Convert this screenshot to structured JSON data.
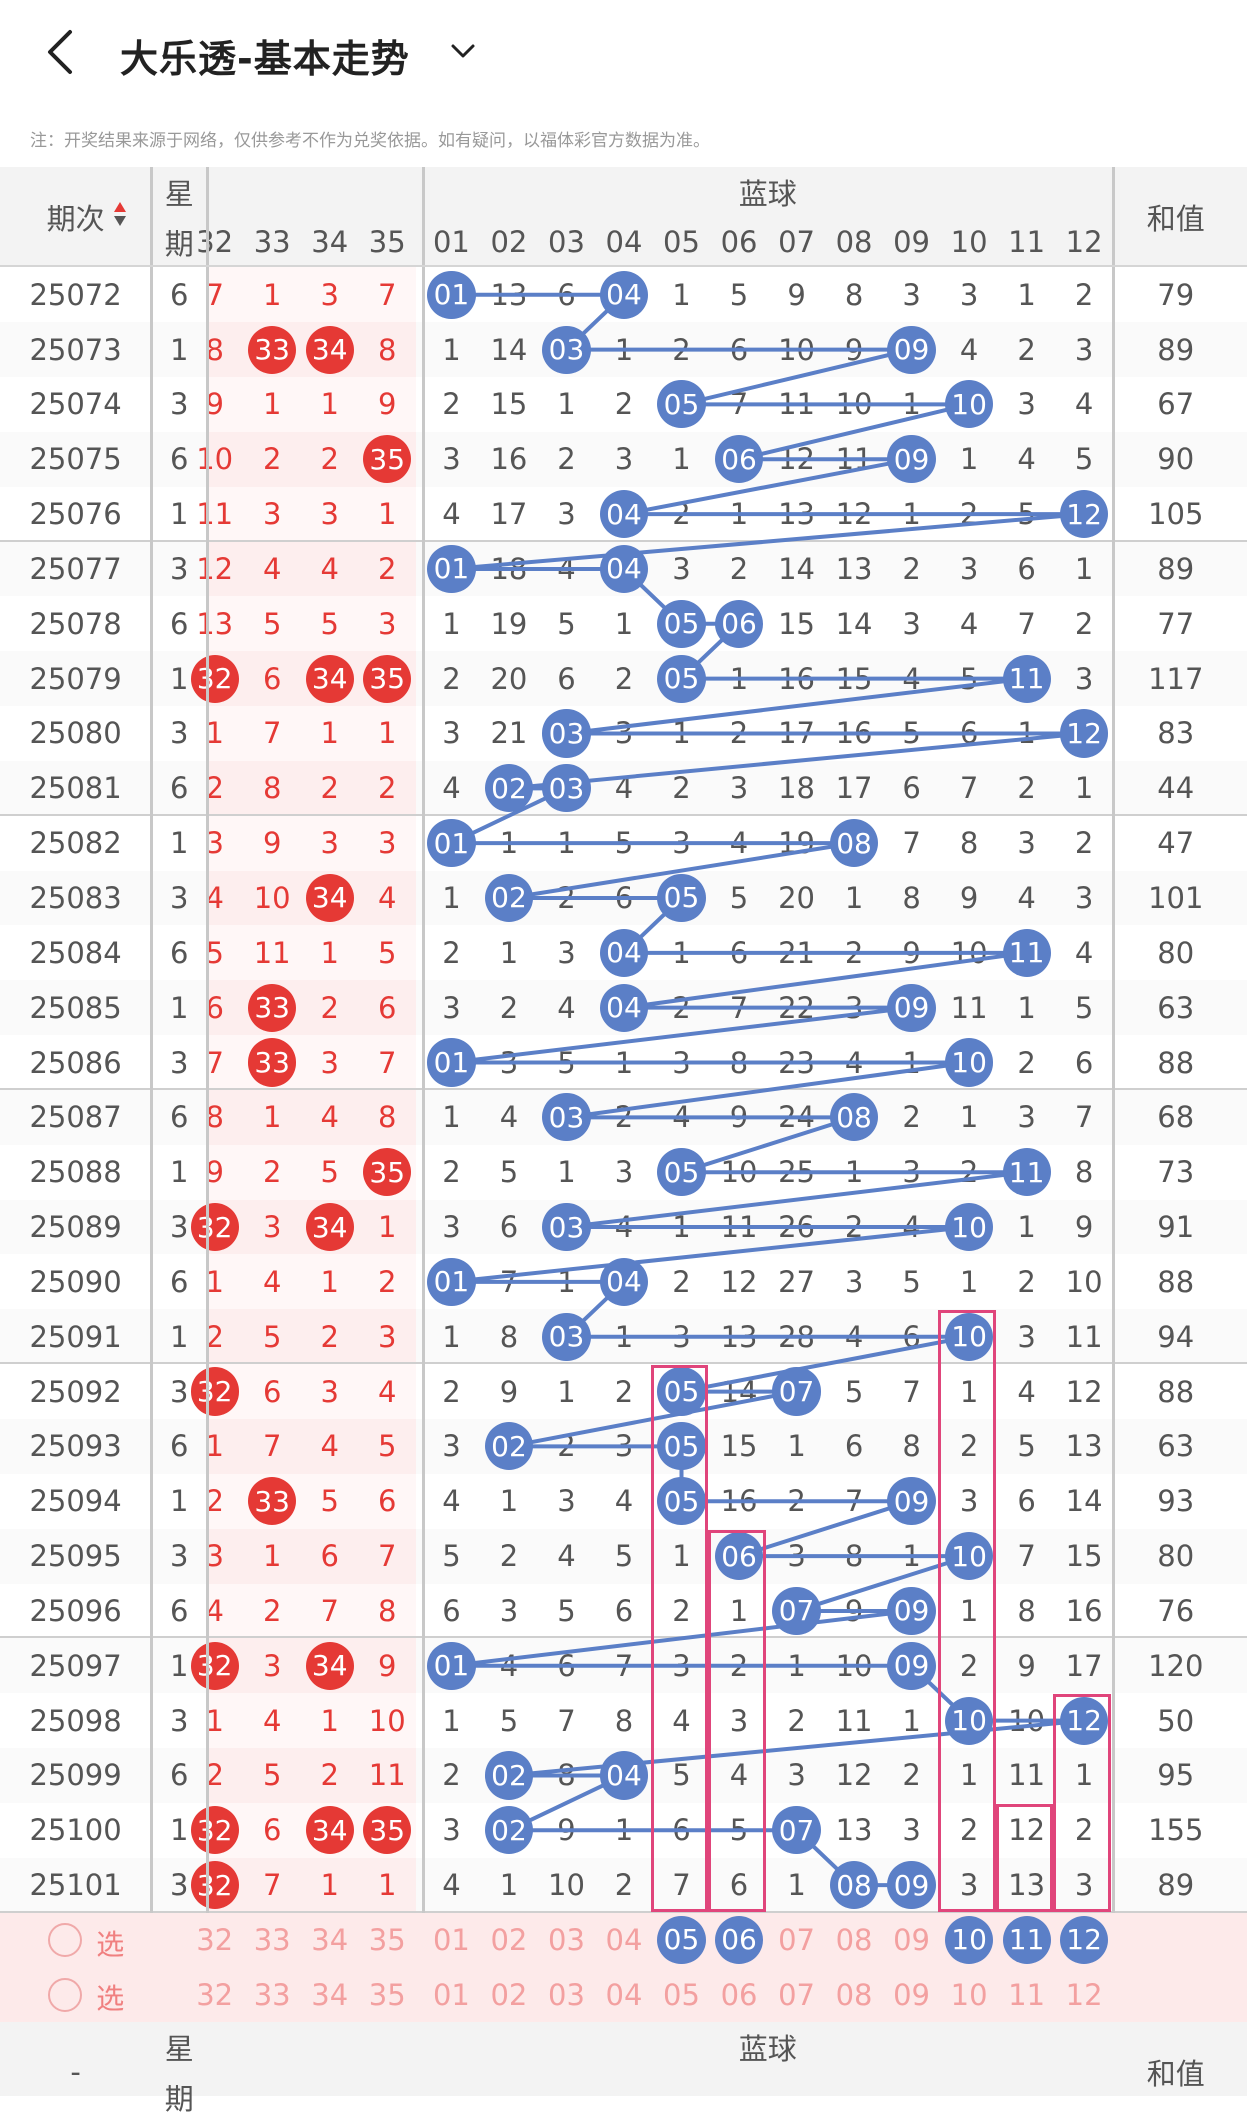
{
  "header": {
    "title": "大乐透-基本走势",
    "back_icon": "chevron-left-icon",
    "dropdown_icon": "chevron-down-icon"
  },
  "note": "注：开奖结果来源于网络，仅供参考不作为兑奖依据。如有疑问，以福体彩官方数据为准。",
  "columns": {
    "period": "期次",
    "weekday_top": "星",
    "weekday_bottom": "期",
    "blue_group": "蓝球",
    "sum": "和值",
    "red_tail": [
      "32",
      "33",
      "34",
      "35"
    ],
    "blue": [
      "01",
      "02",
      "03",
      "04",
      "05",
      "06",
      "07",
      "08",
      "09",
      "10",
      "11",
      "12"
    ],
    "sort_icon": "sort-arrows-icon"
  },
  "colors": {
    "red": "#e53935",
    "blue_ball": "#5b7fc7",
    "highlight_box": "#e0457b",
    "pick_row_bg": "#fdeaea",
    "red_zone_bg": "#fdecec"
  },
  "rows": [
    {
      "p": "25072",
      "w": "6",
      "r": [
        "7",
        "1",
        "3",
        "7"
      ],
      "rb": [],
      "b": [
        "01",
        "13",
        "6",
        "04",
        "1",
        "5",
        "9",
        "8",
        "3",
        "3",
        "1",
        "2"
      ],
      "bb": [
        1,
        4
      ],
      "s": "79"
    },
    {
      "p": "25073",
      "w": "1",
      "r": [
        "8",
        "33",
        "34",
        "8"
      ],
      "rb": [
        1,
        2
      ],
      "b": [
        "1",
        "14",
        "03",
        "1",
        "2",
        "6",
        "10",
        "9",
        "09",
        "4",
        "2",
        "3"
      ],
      "bb": [
        3,
        9
      ],
      "s": "89"
    },
    {
      "p": "25074",
      "w": "3",
      "r": [
        "9",
        "1",
        "1",
        "9"
      ],
      "rb": [],
      "b": [
        "2",
        "15",
        "1",
        "2",
        "05",
        "7",
        "11",
        "10",
        "1",
        "10",
        "3",
        "4"
      ],
      "bb": [
        5,
        10
      ],
      "s": "67"
    },
    {
      "p": "25075",
      "w": "6",
      "r": [
        "10",
        "2",
        "2",
        "35"
      ],
      "rb": [
        3
      ],
      "b": [
        "3",
        "16",
        "2",
        "3",
        "1",
        "06",
        "12",
        "11",
        "09",
        "1",
        "4",
        "5"
      ],
      "bb": [
        6,
        9
      ],
      "s": "90"
    },
    {
      "p": "25076",
      "w": "1",
      "r": [
        "11",
        "3",
        "3",
        "1"
      ],
      "rb": [],
      "b": [
        "4",
        "17",
        "3",
        "04",
        "2",
        "1",
        "13",
        "12",
        "1",
        "2",
        "5",
        "12"
      ],
      "bb": [
        4,
        12
      ],
      "s": "105"
    },
    {
      "p": "25077",
      "w": "3",
      "r": [
        "12",
        "4",
        "4",
        "2"
      ],
      "rb": [],
      "b": [
        "01",
        "18",
        "4",
        "04",
        "3",
        "2",
        "14",
        "13",
        "2",
        "3",
        "6",
        "1"
      ],
      "bb": [
        1,
        4
      ],
      "s": "89"
    },
    {
      "p": "25078",
      "w": "6",
      "r": [
        "13",
        "5",
        "5",
        "3"
      ],
      "rb": [],
      "b": [
        "1",
        "19",
        "5",
        "1",
        "05",
        "06",
        "15",
        "14",
        "3",
        "4",
        "7",
        "2"
      ],
      "bb": [
        5,
        6
      ],
      "s": "77"
    },
    {
      "p": "25079",
      "w": "1",
      "r": [
        "32",
        "6",
        "34",
        "35"
      ],
      "rb": [
        0,
        2,
        3
      ],
      "b": [
        "2",
        "20",
        "6",
        "2",
        "05",
        "1",
        "16",
        "15",
        "4",
        "5",
        "11",
        "3"
      ],
      "bb": [
        5,
        11
      ],
      "s": "117"
    },
    {
      "p": "25080",
      "w": "3",
      "r": [
        "1",
        "7",
        "1",
        "1"
      ],
      "rb": [],
      "b": [
        "3",
        "21",
        "03",
        "3",
        "1",
        "2",
        "17",
        "16",
        "5",
        "6",
        "1",
        "12"
      ],
      "bb": [
        3,
        12
      ],
      "s": "83"
    },
    {
      "p": "25081",
      "w": "6",
      "r": [
        "2",
        "8",
        "2",
        "2"
      ],
      "rb": [],
      "b": [
        "4",
        "02",
        "03",
        "4",
        "2",
        "3",
        "18",
        "17",
        "6",
        "7",
        "2",
        "1"
      ],
      "bb": [
        2,
        3
      ],
      "s": "44"
    },
    {
      "p": "25082",
      "w": "1",
      "r": [
        "3",
        "9",
        "3",
        "3"
      ],
      "rb": [],
      "b": [
        "01",
        "1",
        "1",
        "5",
        "3",
        "4",
        "19",
        "08",
        "7",
        "8",
        "3",
        "2"
      ],
      "bb": [
        1,
        8
      ],
      "s": "47"
    },
    {
      "p": "25083",
      "w": "3",
      "r": [
        "4",
        "10",
        "34",
        "4"
      ],
      "rb": [
        2
      ],
      "b": [
        "1",
        "02",
        "2",
        "6",
        "05",
        "5",
        "20",
        "1",
        "8",
        "9",
        "4",
        "3"
      ],
      "bb": [
        2,
        5
      ],
      "s": "101"
    },
    {
      "p": "25084",
      "w": "6",
      "r": [
        "5",
        "11",
        "1",
        "5"
      ],
      "rb": [],
      "b": [
        "2",
        "1",
        "3",
        "04",
        "1",
        "6",
        "21",
        "2",
        "9",
        "10",
        "11",
        "4"
      ],
      "bb": [
        4,
        11
      ],
      "s": "80"
    },
    {
      "p": "25085",
      "w": "1",
      "r": [
        "6",
        "33",
        "2",
        "6"
      ],
      "rb": [
        1
      ],
      "b": [
        "3",
        "2",
        "4",
        "04",
        "2",
        "7",
        "22",
        "3",
        "09",
        "11",
        "1",
        "5"
      ],
      "bb": [
        4,
        9
      ],
      "s": "63"
    },
    {
      "p": "25086",
      "w": "3",
      "r": [
        "7",
        "33",
        "3",
        "7"
      ],
      "rb": [
        1
      ],
      "b": [
        "01",
        "3",
        "5",
        "1",
        "3",
        "8",
        "23",
        "4",
        "1",
        "10",
        "2",
        "6"
      ],
      "bb": [
        1,
        10
      ],
      "s": "88"
    },
    {
      "p": "25087",
      "w": "6",
      "r": [
        "8",
        "1",
        "4",
        "8"
      ],
      "rb": [],
      "b": [
        "1",
        "4",
        "03",
        "2",
        "4",
        "9",
        "24",
        "08",
        "2",
        "1",
        "3",
        "7"
      ],
      "bb": [
        3,
        8
      ],
      "s": "68"
    },
    {
      "p": "25088",
      "w": "1",
      "r": [
        "9",
        "2",
        "5",
        "35"
      ],
      "rb": [
        3
      ],
      "b": [
        "2",
        "5",
        "1",
        "3",
        "05",
        "10",
        "25",
        "1",
        "3",
        "2",
        "11",
        "8"
      ],
      "bb": [
        5,
        11
      ],
      "s": "73"
    },
    {
      "p": "25089",
      "w": "3",
      "r": [
        "32",
        "3",
        "34",
        "1"
      ],
      "rb": [
        0,
        2
      ],
      "b": [
        "3",
        "6",
        "03",
        "4",
        "1",
        "11",
        "26",
        "2",
        "4",
        "10",
        "1",
        "9"
      ],
      "bb": [
        3,
        10
      ],
      "s": "91"
    },
    {
      "p": "25090",
      "w": "6",
      "r": [
        "1",
        "4",
        "1",
        "2"
      ],
      "rb": [],
      "b": [
        "01",
        "7",
        "1",
        "04",
        "2",
        "12",
        "27",
        "3",
        "5",
        "1",
        "2",
        "10"
      ],
      "bb": [
        1,
        4
      ],
      "s": "88"
    },
    {
      "p": "25091",
      "w": "1",
      "r": [
        "2",
        "5",
        "2",
        "3"
      ],
      "rb": [],
      "b": [
        "1",
        "8",
        "03",
        "1",
        "3",
        "13",
        "28",
        "4",
        "6",
        "10",
        "3",
        "11"
      ],
      "bb": [
        3,
        10
      ],
      "s": "94"
    },
    {
      "p": "25092",
      "w": "3",
      "r": [
        "32",
        "6",
        "3",
        "4"
      ],
      "rb": [
        0
      ],
      "b": [
        "2",
        "9",
        "1",
        "2",
        "05",
        "14",
        "07",
        "5",
        "7",
        "1",
        "4",
        "12"
      ],
      "bb": [
        5,
        7
      ],
      "s": "88"
    },
    {
      "p": "25093",
      "w": "6",
      "r": [
        "1",
        "7",
        "4",
        "5"
      ],
      "rb": [],
      "b": [
        "3",
        "02",
        "2",
        "3",
        "05",
        "15",
        "1",
        "6",
        "8",
        "2",
        "5",
        "13"
      ],
      "bb": [
        2,
        5
      ],
      "s": "63"
    },
    {
      "p": "25094",
      "w": "1",
      "r": [
        "2",
        "33",
        "5",
        "6"
      ],
      "rb": [
        1
      ],
      "b": [
        "4",
        "1",
        "3",
        "4",
        "05",
        "16",
        "2",
        "7",
        "09",
        "3",
        "6",
        "14"
      ],
      "bb": [
        5,
        9
      ],
      "s": "93"
    },
    {
      "p": "25095",
      "w": "3",
      "r": [
        "3",
        "1",
        "6",
        "7"
      ],
      "rb": [],
      "b": [
        "5",
        "2",
        "4",
        "5",
        "1",
        "06",
        "3",
        "8",
        "1",
        "10",
        "7",
        "15"
      ],
      "bb": [
        6,
        10
      ],
      "s": "80"
    },
    {
      "p": "25096",
      "w": "6",
      "r": [
        "4",
        "2",
        "7",
        "8"
      ],
      "rb": [],
      "b": [
        "6",
        "3",
        "5",
        "6",
        "2",
        "1",
        "07",
        "9",
        "09",
        "1",
        "8",
        "16"
      ],
      "bb": [
        7,
        9
      ],
      "s": "76"
    },
    {
      "p": "25097",
      "w": "1",
      "r": [
        "32",
        "3",
        "34",
        "9"
      ],
      "rb": [
        0,
        2
      ],
      "b": [
        "01",
        "4",
        "6",
        "7",
        "3",
        "2",
        "1",
        "10",
        "09",
        "2",
        "9",
        "17"
      ],
      "bb": [
        1,
        9
      ],
      "s": "120"
    },
    {
      "p": "25098",
      "w": "3",
      "r": [
        "1",
        "4",
        "1",
        "10"
      ],
      "rb": [],
      "b": [
        "1",
        "5",
        "7",
        "8",
        "4",
        "3",
        "2",
        "11",
        "1",
        "10",
        "10",
        "12"
      ],
      "bb": [
        10,
        12
      ],
      "s": "50"
    },
    {
      "p": "25099",
      "w": "6",
      "r": [
        "2",
        "5",
        "2",
        "11"
      ],
      "rb": [],
      "b": [
        "2",
        "02",
        "8",
        "04",
        "5",
        "4",
        "3",
        "12",
        "2",
        "1",
        "11",
        "1"
      ],
      "bb": [
        2,
        4
      ],
      "s": "95"
    },
    {
      "p": "25100",
      "w": "1",
      "r": [
        "32",
        "6",
        "34",
        "35"
      ],
      "rb": [
        0,
        2,
        3
      ],
      "b": [
        "3",
        "02",
        "9",
        "1",
        "6",
        "5",
        "07",
        "13",
        "3",
        "2",
        "12",
        "2"
      ],
      "bb": [
        2,
        7
      ],
      "s": "155"
    },
    {
      "p": "25101",
      "w": "3",
      "r": [
        "32",
        "7",
        "1",
        "1"
      ],
      "rb": [
        0
      ],
      "b": [
        "4",
        "1",
        "10",
        "2",
        "7",
        "6",
        "1",
        "08",
        "09",
        "3",
        "13",
        "3"
      ],
      "bb": [
        8,
        9
      ],
      "s": "89"
    }
  ],
  "pick_rows": [
    {
      "label": "选号",
      "red": [
        "32",
        "33",
        "34",
        "35"
      ],
      "blue": [
        "01",
        "02",
        "03",
        "04",
        "05",
        "06",
        "07",
        "08",
        "09",
        "10",
        "11",
        "12"
      ],
      "selected": [
        5,
        6,
        10,
        11,
        12
      ]
    },
    {
      "label": "选号",
      "red": [
        "32",
        "33",
        "34",
        "35"
      ],
      "blue": [
        "01",
        "02",
        "03",
        "04",
        "05",
        "06",
        "07",
        "08",
        "09",
        "10",
        "11",
        "12"
      ],
      "selected": []
    }
  ],
  "footer": {
    "period_dash": "-",
    "weekday_top": "星",
    "weekday_bottom": "期",
    "blue_group": "蓝球",
    "sum": "和值"
  }
}
